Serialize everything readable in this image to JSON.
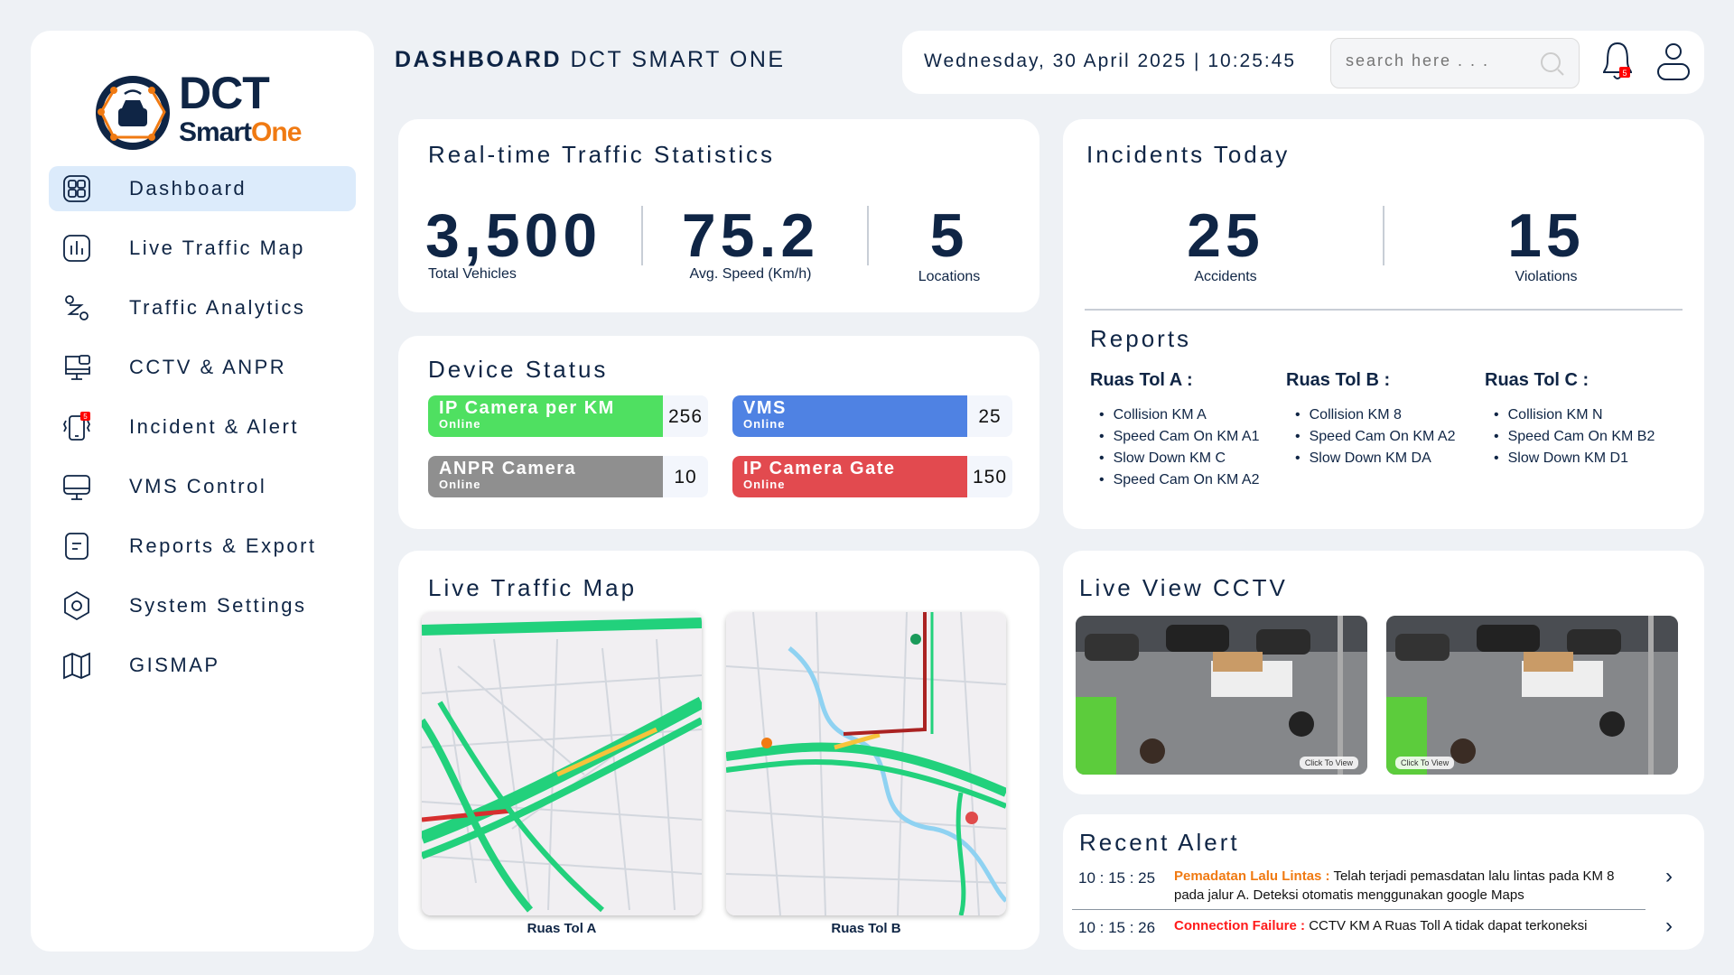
{
  "brand": {
    "line1": "DCT",
    "line2a": "Smart",
    "line2b": "One"
  },
  "sidebar": {
    "items": [
      {
        "label": "Dashboard",
        "icon": "dashboard-grid-icon",
        "active": true
      },
      {
        "label": "Live Traffic Map",
        "icon": "bar-chart-icon"
      },
      {
        "label": "Traffic Analytics",
        "icon": "route-icon"
      },
      {
        "label": "CCTV & ANPR",
        "icon": "monitor-camera-icon"
      },
      {
        "label": "Incident & Alert",
        "icon": "phone-vibrate-icon",
        "badge": "5"
      },
      {
        "label": "VMS Control",
        "icon": "monitor-icon"
      },
      {
        "label": "Reports & Export",
        "icon": "document-icon"
      },
      {
        "label": "System Settings",
        "icon": "settings-hexagon-icon"
      },
      {
        "label": "GISMAP",
        "icon": "map-icon"
      }
    ]
  },
  "header": {
    "title_bold": "DASHBOARD",
    "title_rest": "DCT SMART ONE",
    "datetime": "Wednesday, 30 April 2025 | 10:25:45",
    "search_placeholder": "search here . . .",
    "notification_count": "5"
  },
  "traffic": {
    "title": "Real-time Traffic Statistics",
    "stats": [
      {
        "value": "3,500",
        "label": "Total Vehicles"
      },
      {
        "value": "75.2",
        "label": "Avg. Speed (Km/h)"
      },
      {
        "value": "5",
        "label": "Locations"
      }
    ]
  },
  "device": {
    "title": "Device Status",
    "items": [
      {
        "name": "IP Camera per KM",
        "status": "Online",
        "count": "256",
        "color": "#4fe061"
      },
      {
        "name": "VMS",
        "status": "Online",
        "count": "25",
        "color": "#4f82e3"
      },
      {
        "name": "ANPR Camera",
        "status": "Online",
        "count": "10",
        "color": "#8f8f8f"
      },
      {
        "name": "IP Camera Gate",
        "status": "Online",
        "count": "150",
        "color": "#e24a4f"
      }
    ]
  },
  "incidents": {
    "title": "Incidents Today",
    "accidents": "25",
    "accidents_label": "Accidents",
    "violations": "15",
    "violations_label": "Violations",
    "reports_title": "Reports",
    "groups": [
      {
        "title": "Ruas Tol A :",
        "items": [
          "Collision KM A",
          "Speed Cam On KM A1",
          "Slow Down KM C",
          "Speed Cam On KM A2"
        ]
      },
      {
        "title": "Ruas Tol B :",
        "items": [
          "Collision KM 8",
          "Speed Cam On KM A2",
          "Slow Down KM DA"
        ]
      },
      {
        "title": "Ruas Tol C :",
        "items": [
          "Collision KM N",
          "Speed Cam On KM B2",
          "Slow Down KM D1"
        ]
      }
    ]
  },
  "map": {
    "title": "Live Traffic Map",
    "maps": [
      {
        "label": "Ruas Tol A"
      },
      {
        "label": "Ruas Tol B"
      }
    ]
  },
  "cctv": {
    "title": "Live View CCTV",
    "button": "Click To View"
  },
  "alerts": {
    "title": "Recent Alert",
    "items": [
      {
        "time": "10 : 15 : 25",
        "type": "Pemadatan Lalu Lintas :",
        "type_color": "#f07a12",
        "message": "Telah terjadi pemasdatan lalu lintas pada KM 8 pada jalur A. Deteksi otomatis menggunakan google Maps"
      },
      {
        "time": "10 : 15 : 26",
        "type": "Connection Failure :",
        "type_color": "#ff1a1a",
        "message": "CCTV KM A Ruas Toll A tidak dapat terkoneksi"
      }
    ]
  }
}
